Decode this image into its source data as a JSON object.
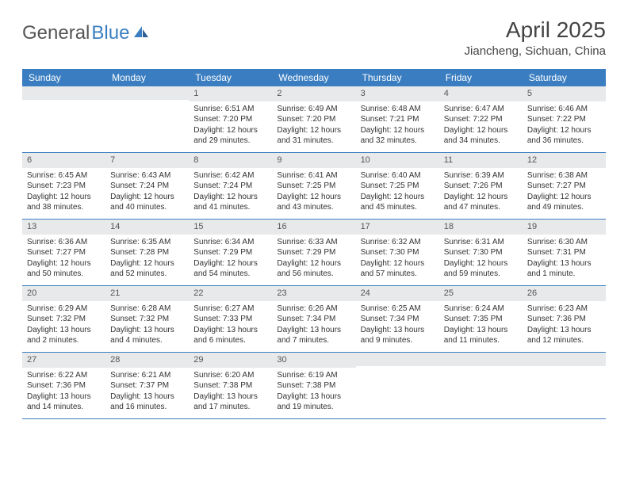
{
  "brand": {
    "part1": "General",
    "part2": "Blue",
    "color_gray": "#555555",
    "color_blue": "#3a7ec1"
  },
  "title": "April 2025",
  "location": "Jiancheng, Sichuan, China",
  "colors": {
    "header_bg": "#3a7ec1",
    "header_text": "#ffffff",
    "daynum_bg": "#e8e9ea",
    "border": "#3a7ec1",
    "text": "#333333",
    "background": "#ffffff"
  },
  "weekdays": [
    "Sunday",
    "Monday",
    "Tuesday",
    "Wednesday",
    "Thursday",
    "Friday",
    "Saturday"
  ],
  "first_weekday_index": 2,
  "days": [
    {
      "n": 1,
      "sunrise": "6:51 AM",
      "sunset": "7:20 PM",
      "daylight": "12 hours and 29 minutes."
    },
    {
      "n": 2,
      "sunrise": "6:49 AM",
      "sunset": "7:20 PM",
      "daylight": "12 hours and 31 minutes."
    },
    {
      "n": 3,
      "sunrise": "6:48 AM",
      "sunset": "7:21 PM",
      "daylight": "12 hours and 32 minutes."
    },
    {
      "n": 4,
      "sunrise": "6:47 AM",
      "sunset": "7:22 PM",
      "daylight": "12 hours and 34 minutes."
    },
    {
      "n": 5,
      "sunrise": "6:46 AM",
      "sunset": "7:22 PM",
      "daylight": "12 hours and 36 minutes."
    },
    {
      "n": 6,
      "sunrise": "6:45 AM",
      "sunset": "7:23 PM",
      "daylight": "12 hours and 38 minutes."
    },
    {
      "n": 7,
      "sunrise": "6:43 AM",
      "sunset": "7:24 PM",
      "daylight": "12 hours and 40 minutes."
    },
    {
      "n": 8,
      "sunrise": "6:42 AM",
      "sunset": "7:24 PM",
      "daylight": "12 hours and 41 minutes."
    },
    {
      "n": 9,
      "sunrise": "6:41 AM",
      "sunset": "7:25 PM",
      "daylight": "12 hours and 43 minutes."
    },
    {
      "n": 10,
      "sunrise": "6:40 AM",
      "sunset": "7:25 PM",
      "daylight": "12 hours and 45 minutes."
    },
    {
      "n": 11,
      "sunrise": "6:39 AM",
      "sunset": "7:26 PM",
      "daylight": "12 hours and 47 minutes."
    },
    {
      "n": 12,
      "sunrise": "6:38 AM",
      "sunset": "7:27 PM",
      "daylight": "12 hours and 49 minutes."
    },
    {
      "n": 13,
      "sunrise": "6:36 AM",
      "sunset": "7:27 PM",
      "daylight": "12 hours and 50 minutes."
    },
    {
      "n": 14,
      "sunrise": "6:35 AM",
      "sunset": "7:28 PM",
      "daylight": "12 hours and 52 minutes."
    },
    {
      "n": 15,
      "sunrise": "6:34 AM",
      "sunset": "7:29 PM",
      "daylight": "12 hours and 54 minutes."
    },
    {
      "n": 16,
      "sunrise": "6:33 AM",
      "sunset": "7:29 PM",
      "daylight": "12 hours and 56 minutes."
    },
    {
      "n": 17,
      "sunrise": "6:32 AM",
      "sunset": "7:30 PM",
      "daylight": "12 hours and 57 minutes."
    },
    {
      "n": 18,
      "sunrise": "6:31 AM",
      "sunset": "7:30 PM",
      "daylight": "12 hours and 59 minutes."
    },
    {
      "n": 19,
      "sunrise": "6:30 AM",
      "sunset": "7:31 PM",
      "daylight": "13 hours and 1 minute."
    },
    {
      "n": 20,
      "sunrise": "6:29 AM",
      "sunset": "7:32 PM",
      "daylight": "13 hours and 2 minutes."
    },
    {
      "n": 21,
      "sunrise": "6:28 AM",
      "sunset": "7:32 PM",
      "daylight": "13 hours and 4 minutes."
    },
    {
      "n": 22,
      "sunrise": "6:27 AM",
      "sunset": "7:33 PM",
      "daylight": "13 hours and 6 minutes."
    },
    {
      "n": 23,
      "sunrise": "6:26 AM",
      "sunset": "7:34 PM",
      "daylight": "13 hours and 7 minutes."
    },
    {
      "n": 24,
      "sunrise": "6:25 AM",
      "sunset": "7:34 PM",
      "daylight": "13 hours and 9 minutes."
    },
    {
      "n": 25,
      "sunrise": "6:24 AM",
      "sunset": "7:35 PM",
      "daylight": "13 hours and 11 minutes."
    },
    {
      "n": 26,
      "sunrise": "6:23 AM",
      "sunset": "7:36 PM",
      "daylight": "13 hours and 12 minutes."
    },
    {
      "n": 27,
      "sunrise": "6:22 AM",
      "sunset": "7:36 PM",
      "daylight": "13 hours and 14 minutes."
    },
    {
      "n": 28,
      "sunrise": "6:21 AM",
      "sunset": "7:37 PM",
      "daylight": "13 hours and 16 minutes."
    },
    {
      "n": 29,
      "sunrise": "6:20 AM",
      "sunset": "7:38 PM",
      "daylight": "13 hours and 17 minutes."
    },
    {
      "n": 30,
      "sunrise": "6:19 AM",
      "sunset": "7:38 PM",
      "daylight": "13 hours and 19 minutes."
    }
  ],
  "labels": {
    "sunrise": "Sunrise:",
    "sunset": "Sunset:",
    "daylight": "Daylight:"
  }
}
